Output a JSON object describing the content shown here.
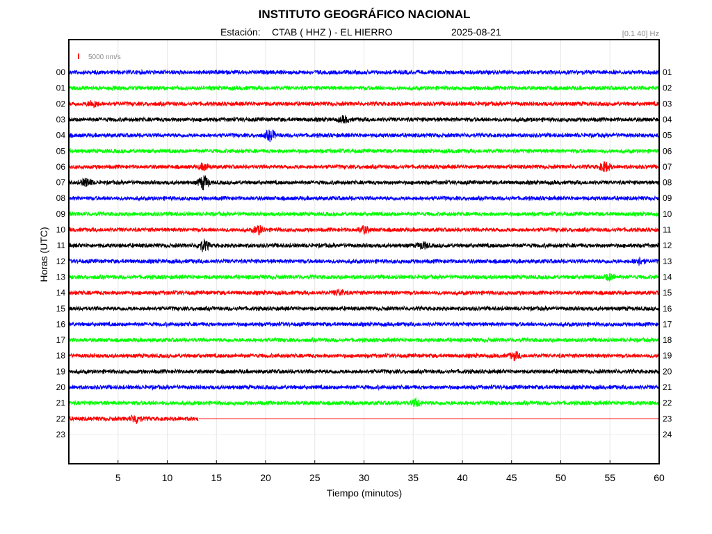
{
  "chart_data": {
    "type": "line",
    "title": "INSTITUTO GEOGRÁFICO NACIONAL",
    "station_label": "Estación:",
    "station": "CTAB ( HHZ ) - EL HIERRO",
    "date": "2025-08-21",
    "filter": "[0.1 40] Hz",
    "scale_label": "5000 nm/s",
    "xlabel": "Tiempo (minutos)",
    "ylabel": "Horas (UTC)",
    "xlim": [
      0,
      60
    ],
    "x_ticks": [
      "5",
      "10",
      "15",
      "20",
      "25",
      "30",
      "35",
      "40",
      "45",
      "50",
      "55",
      "60"
    ],
    "left_hours": [
      "00",
      "01",
      "02",
      "03",
      "04",
      "05",
      "06",
      "07",
      "08",
      "09",
      "10",
      "11",
      "12",
      "13",
      "14",
      "15",
      "16",
      "17",
      "18",
      "19",
      "20",
      "21",
      "22",
      "23"
    ],
    "right_hours": [
      "01",
      "02",
      "03",
      "04",
      "05",
      "06",
      "07",
      "08",
      "09",
      "10",
      "11",
      "12",
      "13",
      "14",
      "15",
      "16",
      "17",
      "18",
      "19",
      "20",
      "21",
      "22",
      "23",
      "24"
    ],
    "grid": true,
    "colors": [
      "#0000ff",
      "#00ff00",
      "#ff0000",
      "#000000"
    ],
    "recorded_until_minute": {
      "hour": "22",
      "minute": 13.2
    },
    "events": [
      {
        "hour": "02",
        "minute": 2.5,
        "strength": 1.3
      },
      {
        "hour": "03",
        "minute": 28,
        "strength": 1.2
      },
      {
        "hour": "04",
        "minute": 20.5,
        "strength": 2.2
      },
      {
        "hour": "06",
        "minute": 13.8,
        "strength": 1.3
      },
      {
        "hour": "06",
        "minute": 54.5,
        "strength": 2.0
      },
      {
        "hour": "07",
        "minute": 1.8,
        "strength": 1.6
      },
      {
        "hour": "07",
        "minute": 13.7,
        "strength": 2.8
      },
      {
        "hour": "10",
        "minute": 19.3,
        "strength": 1.6
      },
      {
        "hour": "10",
        "minute": 30.0,
        "strength": 1.4
      },
      {
        "hour": "11",
        "minute": 13.7,
        "strength": 2.4
      },
      {
        "hour": "11",
        "minute": 36,
        "strength": 1.3
      },
      {
        "hour": "12",
        "minute": 58,
        "strength": 1.4
      },
      {
        "hour": "13",
        "minute": 55,
        "strength": 1.3
      },
      {
        "hour": "14",
        "minute": 27.5,
        "strength": 1.2
      },
      {
        "hour": "18",
        "minute": 45.3,
        "strength": 1.5
      },
      {
        "hour": "21",
        "minute": 35.3,
        "strength": 1.5
      },
      {
        "hour": "22",
        "minute": 6.8,
        "strength": 1.7
      }
    ]
  }
}
